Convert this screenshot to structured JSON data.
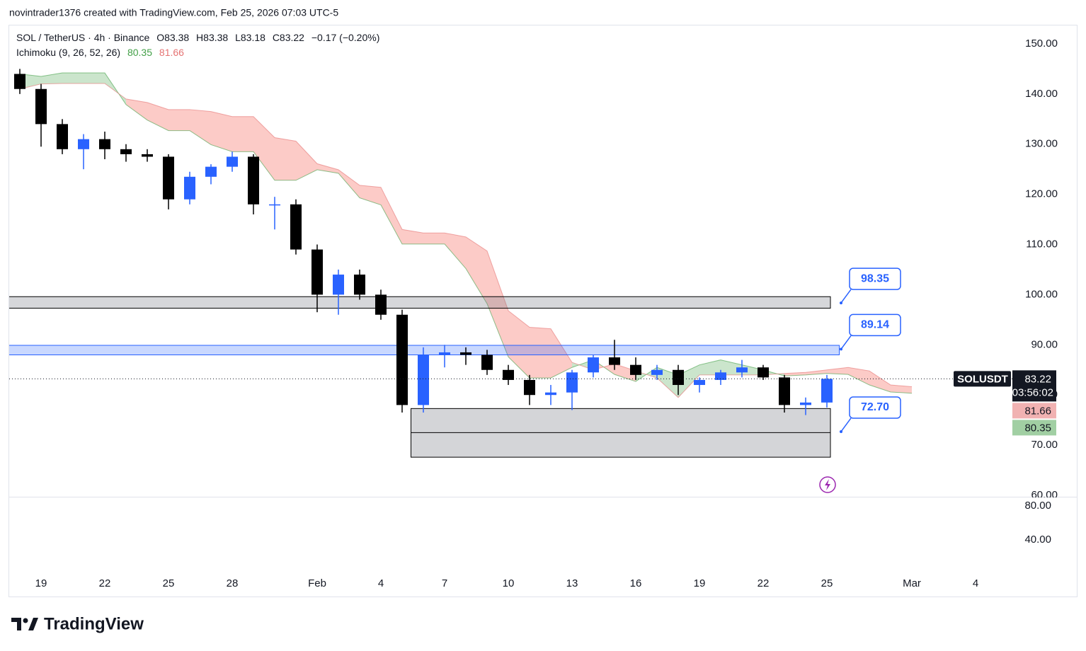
{
  "header": "novintrader1376 created with TradingView.com, Feb 25, 2026 07:03 UTC-5",
  "brand": "TradingView",
  "chart_data": {
    "type": "candlestick",
    "legend": {
      "symbol": "SOL / TetherUS · 4h · Binance",
      "ohlc": [
        "O83.38",
        "H83.38",
        "L83.18",
        "C83.22"
      ],
      "change": "−0.17 (−0.20%)"
    },
    "indicator": {
      "name": "Ichimoku (9, 26, 52, 26)",
      "span_a_value": 80.35,
      "span_b_value": 81.66,
      "span_a_color": "#43a047",
      "span_b_color": "#e57373"
    },
    "symbol_tag": "SOLUSDT",
    "last_price": 83.22,
    "countdown": "03:56:02",
    "xlim": [
      "2026-01-17",
      "2026-03-06"
    ],
    "xticks": [
      {
        "value": "2026-01-19",
        "label": "19"
      },
      {
        "value": "2026-01-22",
        "label": "22"
      },
      {
        "value": "2026-01-25",
        "label": "25"
      },
      {
        "value": "2026-01-28",
        "label": "28"
      },
      {
        "value": "2026-02-01",
        "label": "Feb"
      },
      {
        "value": "2026-02-04",
        "label": "4"
      },
      {
        "value": "2026-02-07",
        "label": "7"
      },
      {
        "value": "2026-02-10",
        "label": "10"
      },
      {
        "value": "2026-02-13",
        "label": "13"
      },
      {
        "value": "2026-02-16",
        "label": "16"
      },
      {
        "value": "2026-02-19",
        "label": "19"
      },
      {
        "value": "2026-02-22",
        "label": "22"
      },
      {
        "value": "2026-02-25",
        "label": "25"
      },
      {
        "value": "2026-03-01",
        "label": "Mar"
      },
      {
        "value": "2026-03-04",
        "label": "4"
      }
    ],
    "ylim": [
      60,
      153.8
    ],
    "yticks": [
      {
        "value": 60,
        "label": "60.00"
      },
      {
        "value": 70,
        "label": "70.00"
      },
      {
        "value": 80,
        "label": "80.00"
      },
      {
        "value": 90,
        "label": "90.00"
      },
      {
        "value": 100,
        "label": "100.00"
      },
      {
        "value": 110,
        "label": "110.00"
      },
      {
        "value": 120,
        "label": "120.00"
      },
      {
        "value": 130,
        "label": "130.00"
      },
      {
        "value": 140,
        "label": "140.00"
      },
      {
        "value": 150,
        "label": "150.00"
      }
    ],
    "up_color": "#2962ff",
    "down_color": "#000000",
    "x": [
      "2026-01-18",
      "2026-01-19",
      "2026-01-20",
      "2026-01-21",
      "2026-01-22",
      "2026-01-23",
      "2026-01-24",
      "2026-01-25",
      "2026-01-26",
      "2026-01-27",
      "2026-01-28",
      "2026-01-29",
      "2026-01-30",
      "2026-01-31",
      "2026-02-01",
      "2026-02-02",
      "2026-02-03",
      "2026-02-04",
      "2026-02-05",
      "2026-02-06",
      "2026-02-07",
      "2026-02-08",
      "2026-02-09",
      "2026-02-10",
      "2026-02-11",
      "2026-02-12",
      "2026-02-13",
      "2026-02-14",
      "2026-02-15",
      "2026-02-16",
      "2026-02-17",
      "2026-02-18",
      "2026-02-19",
      "2026-02-20",
      "2026-02-21",
      "2026-02-22",
      "2026-02-23",
      "2026-02-24",
      "2026-02-25"
    ],
    "open": [
      144,
      141,
      134,
      129,
      131,
      129,
      128,
      127.5,
      119,
      123.5,
      125.5,
      127.5,
      118,
      118,
      109,
      100,
      104,
      100,
      96,
      78,
      88,
      88.5,
      88,
      85,
      83,
      80,
      80.5,
      84.5,
      87.5,
      86,
      84,
      85,
      82,
      83,
      84.5,
      85.5,
      83.5,
      78,
      78.5
    ],
    "high": [
      145,
      142,
      135,
      132,
      132.5,
      130,
      129,
      128,
      124.5,
      126,
      128.5,
      128,
      119.5,
      119,
      110,
      105,
      105,
      101,
      97,
      89.5,
      90,
      89.5,
      89,
      86,
      84,
      82,
      85,
      88,
      91,
      87.5,
      86,
      86,
      83.5,
      85,
      87,
      86,
      84,
      79.5,
      84
    ],
    "low": [
      140,
      129.5,
      128,
      125,
      127,
      126.5,
      126.5,
      117,
      118,
      122,
      124.5,
      116,
      113,
      108,
      96.5,
      96,
      99,
      95,
      76.5,
      76.5,
      85.5,
      86,
      84,
      82,
      78,
      78,
      77,
      83.5,
      85,
      83,
      83,
      80,
      80.5,
      82,
      83.5,
      83,
      76.5,
      76,
      77.5
    ],
    "close": [
      141,
      134,
      129,
      131,
      129,
      128,
      127.5,
      119,
      123.5,
      125.5,
      127.5,
      118,
      118,
      109,
      100,
      104,
      100,
      96,
      78,
      88,
      88.5,
      88,
      85,
      83,
      80,
      80.5,
      84.5,
      87.5,
      86,
      84,
      85,
      82,
      83,
      84.5,
      85.5,
      83.5,
      78,
      78.5,
      83.22
    ],
    "cloud": {
      "x": [
        "2026-01-18",
        "2026-01-19",
        "2026-01-20",
        "2026-01-21",
        "2026-01-22",
        "2026-01-23",
        "2026-01-24",
        "2026-01-25",
        "2026-01-26",
        "2026-01-27",
        "2026-01-28",
        "2026-01-29",
        "2026-01-30",
        "2026-01-31",
        "2026-02-01",
        "2026-02-02",
        "2026-02-03",
        "2026-02-04",
        "2026-02-05",
        "2026-02-06",
        "2026-02-07",
        "2026-02-08",
        "2026-02-09",
        "2026-02-10",
        "2026-02-11",
        "2026-02-12",
        "2026-02-13",
        "2026-02-14",
        "2026-02-15",
        "2026-02-16",
        "2026-02-17",
        "2026-02-18",
        "2026-02-19",
        "2026-02-20",
        "2026-02-21",
        "2026-02-22",
        "2026-02-23",
        "2026-02-24",
        "2026-02-25",
        "2026-02-26",
        "2026-02-27",
        "2026-02-28",
        "2026-03-01"
      ],
      "span_a": [
        144,
        143.5,
        144.2,
        144.2,
        144.2,
        137.9,
        134.8,
        132.7,
        132.7,
        129.9,
        128.5,
        128.5,
        122.8,
        122.8,
        124.9,
        124.2,
        119.3,
        117.9,
        110.1,
        110.1,
        110.1,
        105.2,
        98.2,
        87.6,
        83.4,
        83.4,
        85.5,
        87,
        84.1,
        82.7,
        85.5,
        84,
        86,
        87,
        86,
        85,
        83.8,
        84,
        84.3,
        84.1,
        82,
        80.6,
        80.35
      ],
      "span_b": [
        141,
        142,
        142.1,
        142.1,
        142.1,
        139,
        138.3,
        136.9,
        136.9,
        136.5,
        135.5,
        135.5,
        131.3,
        130.6,
        126.1,
        124.9,
        121.8,
        121.4,
        113,
        112.3,
        112.3,
        111.5,
        108.7,
        96.8,
        93.5,
        93.2,
        86.5,
        85,
        86.2,
        84.8,
        83.4,
        79.5,
        84,
        84,
        84,
        84,
        84.3,
        84.5,
        85,
        85.5,
        84.8,
        82,
        81.66
      ],
      "up_fill": "rgba(67,160,71,0.28)",
      "down_fill": "rgba(244,67,54,0.28)"
    },
    "zones": [
      {
        "xlim": [
          "2026-01-17",
          "2026-02-25T04:00Z"
        ],
        "ylim": [
          97.3,
          99.6
        ],
        "color": "rgba(120,123,134,0.3)",
        "border": "#000000"
      },
      {
        "xlim": [
          "2026-01-17",
          "2026-02-25T14:00Z"
        ],
        "ylim": [
          88.0,
          89.9
        ],
        "color": "rgba(41,98,255,0.25)",
        "border": "#2962ff"
      },
      {
        "xlim": [
          "2026-02-05T10:00Z",
          "2026-02-25T04:00Z"
        ],
        "ylim": [
          67.6,
          77.3
        ],
        "midline": 72.5,
        "color": "rgba(120,123,134,0.32)",
        "border": "#000000"
      }
    ],
    "callouts": [
      {
        "x": "2026-02-25T16:00Z",
        "value": 98.35
      },
      {
        "x": "2026-02-25T16:00Z",
        "value": 89.14
      },
      {
        "x": "2026-02-25T16:00Z",
        "value": 72.7,
        "value_label": "72.70"
      }
    ],
    "pane2": {
      "ylim": [
        2.5,
        90
      ],
      "yticks": [
        {
          "value": 40,
          "label": "40.00"
        },
        {
          "value": 80,
          "label": "80.00"
        }
      ]
    }
  }
}
